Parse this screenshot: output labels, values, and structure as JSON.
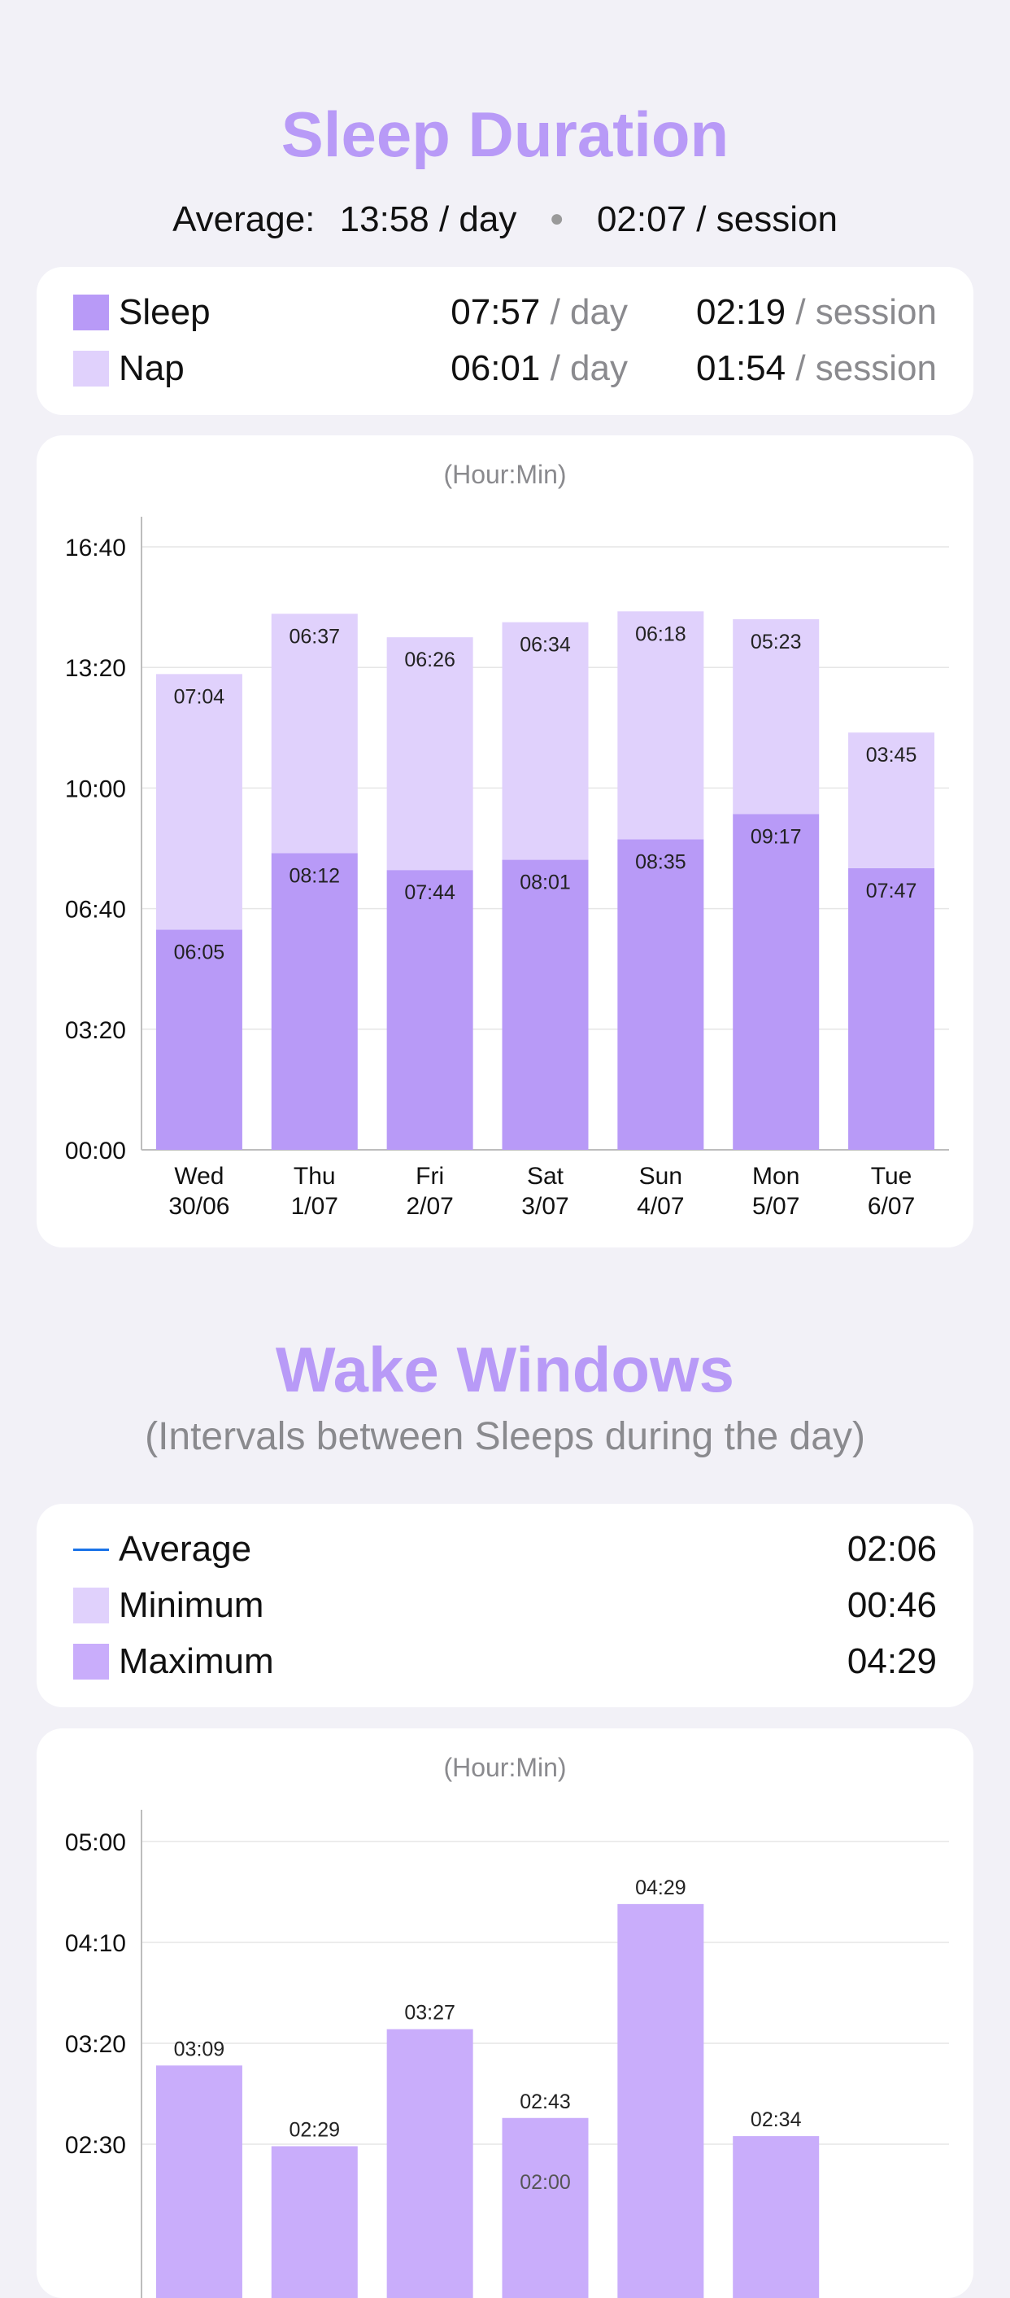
{
  "sleep_duration": {
    "title": "Sleep Duration",
    "average_label": "Average:",
    "average_day": "13:58 / day",
    "average_session": "02:07 / session",
    "legend": [
      {
        "name": "Sleep",
        "day": "07:57",
        "day_suffix": "/ day",
        "session": "02:19",
        "session_suffix": "/ session",
        "color": "#B89AF7"
      },
      {
        "name": "Nap",
        "day": "06:01",
        "day_suffix": "/ day",
        "session": "01:54",
        "session_suffix": "/ session",
        "color": "#E0D1FC"
      }
    ],
    "unit_label": "(Hour:Min)"
  },
  "wake_windows": {
    "title": "Wake Windows",
    "subtitle": "(Intervals between Sleeps during the day)",
    "legend": [
      {
        "name": "Average",
        "value": "02:06",
        "color": "#1A73E8",
        "kind": "line"
      },
      {
        "name": "Minimum",
        "value": "00:46",
        "color": "#E0D1FC",
        "kind": "box"
      },
      {
        "name": "Maximum",
        "value": "04:29",
        "color": "#C9ADFB",
        "kind": "box"
      }
    ],
    "unit_label": "(Hour:Min)"
  },
  "chart_data": [
    {
      "type": "bar",
      "stacked": true,
      "categories": [
        "Wed\n30/06",
        "Thu\n1/07",
        "Fri\n2/07",
        "Sat\n3/07",
        "Sun\n4/07",
        "Mon\n5/07",
        "Tue\n6/07"
      ],
      "y_ticks": [
        "00:00",
        "03:20",
        "06:40",
        "10:00",
        "13:20",
        "16:40"
      ],
      "ylim_minutes": [
        0,
        1000
      ],
      "series": [
        {
          "name": "Sleep",
          "color": "#B89AF7",
          "labels": [
            "06:05",
            "08:12",
            "07:44",
            "08:01",
            "08:35",
            "09:17",
            "07:47"
          ],
          "values_minutes": [
            365,
            492,
            464,
            481,
            515,
            557,
            467
          ]
        },
        {
          "name": "Nap",
          "color": "#E0D1FC",
          "labels": [
            "07:04",
            "06:37",
            "06:26",
            "06:34",
            "06:18",
            "05:23",
            "03:45"
          ],
          "values_minutes": [
            424,
            397,
            386,
            394,
            378,
            323,
            225
          ]
        }
      ]
    },
    {
      "type": "bar",
      "y_ticks": [
        "02:30",
        "03:20",
        "04:10",
        "05:00"
      ],
      "ylim_minutes": [
        150,
        300
      ],
      "series": [
        {
          "name": "Maximum",
          "color": "#C9ADFB",
          "labels": [
            "03:09",
            "02:29",
            "03:27",
            "02:43",
            "04:29",
            "02:34"
          ],
          "values_minutes": [
            189,
            149,
            207,
            163,
            269,
            154
          ]
        }
      ],
      "partial_labels": [
        "02:00"
      ]
    }
  ]
}
